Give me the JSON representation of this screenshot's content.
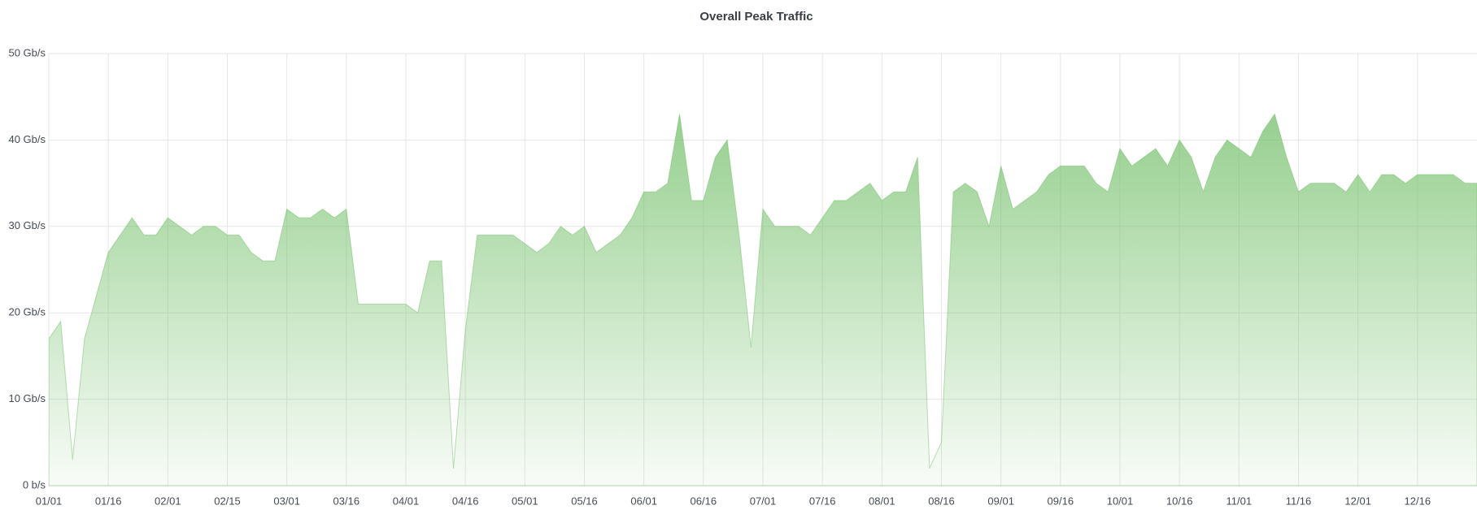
{
  "chart_data": {
    "type": "area",
    "title": "Overall Peak Traffic",
    "x": [
      "01/01",
      "01/04",
      "01/07",
      "01/10",
      "01/13",
      "01/16",
      "01/19",
      "01/22",
      "01/25",
      "01/28",
      "02/01",
      "02/04",
      "02/07",
      "02/10",
      "02/13",
      "02/15",
      "02/19",
      "02/22",
      "02/25",
      "02/28",
      "03/01",
      "03/04",
      "03/07",
      "03/10",
      "03/13",
      "03/16",
      "03/19",
      "03/22",
      "03/25",
      "03/28",
      "04/01",
      "04/04",
      "04/07",
      "04/10",
      "04/13",
      "04/16",
      "04/19",
      "04/22",
      "04/25",
      "04/28",
      "05/01",
      "05/04",
      "05/07",
      "05/10",
      "05/13",
      "05/16",
      "05/19",
      "05/22",
      "05/25",
      "05/28",
      "06/01",
      "06/04",
      "06/07",
      "06/10",
      "06/13",
      "06/16",
      "06/19",
      "06/22",
      "06/25",
      "06/28",
      "07/01",
      "07/04",
      "07/07",
      "07/10",
      "07/13",
      "07/16",
      "07/19",
      "07/22",
      "07/25",
      "07/28",
      "08/01",
      "08/04",
      "08/07",
      "08/10",
      "08/13",
      "08/16",
      "08/19",
      "08/22",
      "08/25",
      "08/28",
      "09/01",
      "09/04",
      "09/07",
      "09/10",
      "09/13",
      "09/16",
      "09/19",
      "09/22",
      "09/25",
      "09/28",
      "10/01",
      "10/04",
      "10/07",
      "10/10",
      "10/13",
      "10/16",
      "10/19",
      "10/22",
      "10/25",
      "10/28",
      "11/01",
      "11/04",
      "11/07",
      "11/10",
      "11/13",
      "11/16",
      "11/19",
      "11/22",
      "11/25",
      "11/28",
      "12/01",
      "12/04",
      "12/07",
      "12/10",
      "12/13",
      "12/16",
      "12/19",
      "12/22",
      "12/25",
      "12/28",
      "12/31"
    ],
    "series": [
      {
        "color": "#73bf69",
        "values": [
          17,
          19,
          3,
          17,
          22,
          27,
          29,
          31,
          29,
          29,
          31,
          30,
          29,
          30,
          30,
          29,
          29,
          27,
          26,
          26,
          32,
          31,
          31,
          32,
          31,
          32,
          21,
          21,
          21,
          21,
          21,
          20,
          26,
          26,
          2,
          18,
          29,
          29,
          29,
          29,
          28,
          27,
          28,
          30,
          29,
          30,
          27,
          28,
          29,
          31,
          34,
          34,
          35,
          43,
          33,
          33,
          38,
          40,
          29,
          16,
          32,
          30,
          30,
          30,
          29,
          31,
          33,
          33,
          34,
          35,
          33,
          34,
          34,
          38,
          2,
          5,
          34,
          35,
          34,
          30,
          37,
          32,
          33,
          34,
          36,
          37,
          37,
          37,
          35,
          34,
          39,
          37,
          38,
          39,
          37,
          40,
          38,
          34,
          38,
          40,
          39,
          38,
          41,
          43,
          38,
          34,
          35,
          35,
          35,
          34,
          36,
          34,
          36,
          36,
          35,
          36,
          36,
          36,
          36,
          35,
          35
        ]
      }
    ],
    "xticks": [
      "01/01",
      "01/16",
      "02/01",
      "02/15",
      "03/01",
      "03/16",
      "04/01",
      "04/16",
      "05/01",
      "05/16",
      "06/01",
      "06/16",
      "07/01",
      "07/16",
      "08/01",
      "08/16",
      "09/01",
      "09/16",
      "10/01",
      "10/16",
      "11/01",
      "11/16",
      "12/01",
      "12/16"
    ],
    "ylim": [
      0,
      50
    ],
    "yticks": [
      {
        "value": 0,
        "label": "0 b/s"
      },
      {
        "value": 10,
        "label": "10 Gb/s"
      },
      {
        "value": 20,
        "label": "20 Gb/s"
      },
      {
        "value": 30,
        "label": "30 Gb/s"
      },
      {
        "value": 40,
        "label": "40 Gb/s"
      },
      {
        "value": 50,
        "label": "50 Gb/s"
      }
    ],
    "grid": true
  }
}
